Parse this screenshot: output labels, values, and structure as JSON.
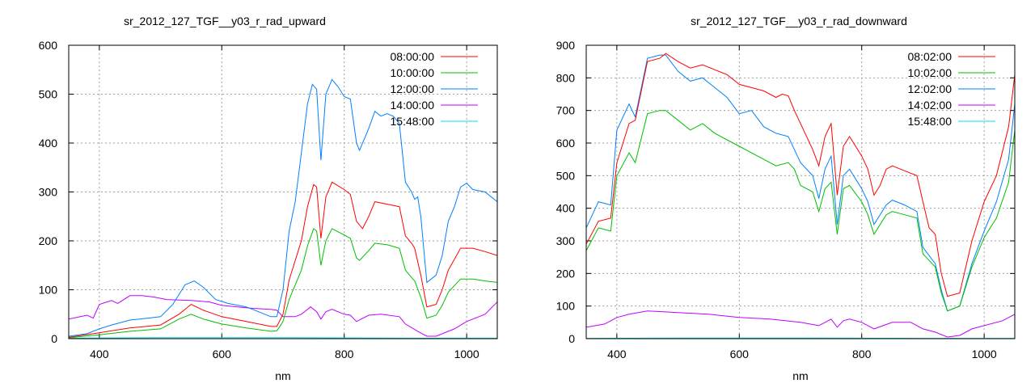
{
  "chart_data": [
    {
      "type": "line",
      "title": "sr_2012_127_TGF__y03_r_rad_upward",
      "xlabel": "nm",
      "ylabel": "",
      "xlim": [
        350,
        1050
      ],
      "ylim": [
        0,
        600
      ],
      "xticks": [
        400,
        600,
        800,
        1000
      ],
      "yticks": [
        0,
        100,
        200,
        300,
        400,
        500,
        600
      ],
      "grid": true,
      "legend_position": "top-right",
      "series": [
        {
          "name": "08:00:00",
          "color": "#ff0000",
          "x": [
            350,
            400,
            450,
            500,
            530,
            550,
            570,
            600,
            640,
            680,
            690,
            700,
            710,
            730,
            740,
            750,
            755,
            762,
            770,
            780,
            800,
            810,
            820,
            830,
            840,
            850,
            870,
            890,
            900,
            910,
            915,
            925,
            935,
            950,
            960,
            970,
            990,
            1010,
            1030,
            1050
          ],
          "y": [
            3,
            12,
            22,
            28,
            50,
            70,
            58,
            45,
            35,
            25,
            25,
            50,
            120,
            200,
            270,
            315,
            310,
            205,
            290,
            320,
            305,
            295,
            240,
            225,
            250,
            280,
            275,
            270,
            210,
            195,
            185,
            130,
            65,
            70,
            100,
            140,
            185,
            185,
            178,
            170
          ]
        },
        {
          "name": "10:00:00",
          "color": "#00c000",
          "x": [
            350,
            400,
            450,
            500,
            530,
            550,
            570,
            600,
            640,
            680,
            690,
            700,
            710,
            730,
            740,
            750,
            755,
            762,
            770,
            780,
            800,
            810,
            820,
            825,
            840,
            850,
            870,
            890,
            900,
            910,
            915,
            925,
            935,
            950,
            960,
            970,
            990,
            1010,
            1030,
            1050
          ],
          "y": [
            2,
            8,
            15,
            20,
            40,
            50,
            40,
            30,
            22,
            15,
            16,
            35,
            80,
            140,
            190,
            225,
            220,
            150,
            200,
            225,
            212,
            205,
            165,
            160,
            180,
            195,
            192,
            185,
            140,
            125,
            118,
            85,
            42,
            48,
            68,
            95,
            122,
            122,
            118,
            115
          ]
        },
        {
          "name": "12:00:00",
          "color": "#0080ff",
          "x": [
            350,
            380,
            400,
            420,
            450,
            480,
            500,
            520,
            540,
            555,
            570,
            590,
            610,
            640,
            660,
            680,
            690,
            700,
            710,
            720,
            730,
            740,
            748,
            755,
            762,
            770,
            780,
            790,
            800,
            810,
            820,
            825,
            840,
            850,
            860,
            870,
            880,
            890,
            900,
            910,
            915,
            920,
            925,
            935,
            950,
            960,
            970,
            980,
            990,
            1000,
            1010,
            1030,
            1050
          ],
          "y": [
            5,
            10,
            20,
            28,
            38,
            42,
            45,
            70,
            110,
            118,
            105,
            80,
            72,
            65,
            55,
            45,
            45,
            100,
            220,
            280,
            380,
            480,
            520,
            510,
            365,
            500,
            530,
            515,
            495,
            490,
            400,
            385,
            430,
            465,
            455,
            460,
            455,
            440,
            320,
            300,
            285,
            290,
            250,
            115,
            130,
            170,
            240,
            270,
            310,
            318,
            305,
            300,
            280
          ]
        },
        {
          "name": "14:00:00",
          "color": "#c000ff",
          "x": [
            350,
            380,
            390,
            400,
            420,
            430,
            450,
            470,
            490,
            510,
            550,
            580,
            600,
            650,
            680,
            690,
            700,
            720,
            730,
            745,
            755,
            762,
            770,
            780,
            800,
            810,
            820,
            840,
            860,
            890,
            900,
            920,
            935,
            950,
            980,
            1000,
            1030,
            1050
          ],
          "y": [
            40,
            48,
            42,
            70,
            78,
            72,
            88,
            88,
            85,
            80,
            78,
            75,
            68,
            62,
            60,
            58,
            45,
            45,
            50,
            65,
            55,
            40,
            55,
            60,
            50,
            48,
            35,
            48,
            50,
            45,
            30,
            15,
            5,
            5,
            20,
            35,
            50,
            75
          ]
        },
        {
          "name": "15:48:00",
          "color": "#00e0e0",
          "x": [
            350,
            500,
            700,
            900,
            1050
          ],
          "y": [
            1,
            2,
            2,
            1,
            1
          ]
        }
      ]
    },
    {
      "type": "line",
      "title": "sr_2012_127_TGF__y03_r_rad_downward",
      "xlabel": "nm",
      "ylabel": "",
      "xlim": [
        350,
        1050
      ],
      "ylim": [
        0,
        900
      ],
      "xticks": [
        400,
        600,
        800,
        1000
      ],
      "yticks": [
        0,
        100,
        200,
        300,
        400,
        500,
        600,
        700,
        800,
        900
      ],
      "grid": true,
      "legend_position": "top-right",
      "series": [
        {
          "name": "08:02:00",
          "color": "#ff0000",
          "x": [
            350,
            370,
            390,
            400,
            420,
            430,
            440,
            450,
            470,
            480,
            500,
            520,
            540,
            560,
            580,
            600,
            620,
            640,
            660,
            670,
            680,
            690,
            700,
            720,
            730,
            740,
            750,
            760,
            770,
            780,
            800,
            810,
            820,
            830,
            840,
            850,
            870,
            890,
            900,
            910,
            920,
            930,
            940,
            960,
            980,
            1000,
            1020,
            1040,
            1050
          ],
          "y": [
            290,
            360,
            370,
            540,
            660,
            670,
            760,
            850,
            860,
            875,
            850,
            830,
            840,
            825,
            810,
            780,
            770,
            760,
            740,
            750,
            745,
            700,
            660,
            580,
            530,
            620,
            660,
            440,
            590,
            620,
            560,
            520,
            440,
            470,
            520,
            530,
            515,
            500,
            420,
            340,
            320,
            200,
            130,
            140,
            300,
            420,
            500,
            650,
            810
          ]
        },
        {
          "name": "10:02:00",
          "color": "#00c000",
          "x": [
            350,
            370,
            390,
            400,
            420,
            430,
            450,
            470,
            480,
            500,
            520,
            540,
            560,
            580,
            600,
            620,
            640,
            660,
            680,
            690,
            700,
            720,
            730,
            740,
            750,
            760,
            770,
            780,
            800,
            810,
            820,
            840,
            850,
            870,
            890,
            900,
            920,
            930,
            940,
            960,
            980,
            1000,
            1020,
            1040,
            1050
          ],
          "y": [
            270,
            340,
            330,
            500,
            570,
            540,
            690,
            700,
            700,
            670,
            640,
            660,
            630,
            610,
            590,
            570,
            550,
            530,
            540,
            520,
            470,
            450,
            390,
            460,
            480,
            320,
            460,
            470,
            420,
            380,
            320,
            380,
            390,
            380,
            370,
            260,
            220,
            140,
            85,
            100,
            220,
            310,
            370,
            480,
            640
          ]
        },
        {
          "name": "12:02:00",
          "color": "#0080ff",
          "x": [
            350,
            370,
            390,
            400,
            420,
            430,
            450,
            470,
            480,
            500,
            520,
            540,
            560,
            580,
            600,
            620,
            640,
            660,
            680,
            690,
            700,
            720,
            730,
            740,
            750,
            760,
            770,
            780,
            800,
            810,
            820,
            840,
            850,
            870,
            890,
            900,
            920,
            930,
            940,
            960,
            980,
            1000,
            1020,
            1040,
            1050
          ],
          "y": [
            340,
            420,
            410,
            640,
            720,
            680,
            860,
            870,
            870,
            820,
            790,
            800,
            770,
            740,
            690,
            700,
            650,
            630,
            620,
            580,
            540,
            500,
            430,
            520,
            560,
            350,
            500,
            520,
            460,
            420,
            350,
            410,
            425,
            410,
            390,
            280,
            230,
            150,
            85,
            100,
            230,
            330,
            420,
            550,
            720
          ]
        },
        {
          "name": "14:02:00",
          "color": "#c000ff",
          "x": [
            350,
            380,
            400,
            420,
            450,
            480,
            500,
            550,
            600,
            650,
            700,
            730,
            750,
            760,
            770,
            780,
            800,
            820,
            850,
            880,
            900,
            920,
            940,
            960,
            980,
            1000,
            1030,
            1050
          ],
          "y": [
            35,
            45,
            65,
            75,
            85,
            82,
            80,
            75,
            65,
            60,
            50,
            40,
            60,
            35,
            55,
            60,
            50,
            30,
            50,
            50,
            30,
            20,
            5,
            10,
            30,
            40,
            55,
            75
          ]
        },
        {
          "name": "15:48:00",
          "color": "#00e0e0",
          "x": [
            350,
            500,
            700,
            900,
            1050
          ],
          "y": [
            1,
            2,
            2,
            1,
            1
          ]
        }
      ]
    }
  ]
}
